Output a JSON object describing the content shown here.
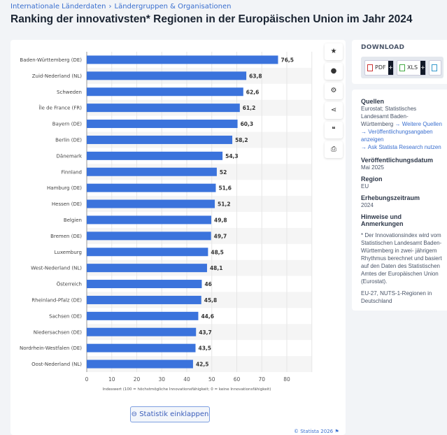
{
  "breadcrumb": [
    "Internationale Länderdaten",
    "›",
    "Ländergruppen & Organisationen"
  ],
  "title": "Ranking der innovativsten* Regionen in der Europäischen Union im Jahr 2024",
  "side_icons": [
    "star-icon",
    "bell-icon",
    "gear-icon",
    "share-icon",
    "quote-icon",
    "print-icon"
  ],
  "collapse_button": "Statistik einklappen",
  "copyright": "© Statista 2026",
  "download": {
    "title": "DOWNLOAD",
    "buttons": [
      "PDF",
      "XLS"
    ]
  },
  "info": {
    "sources_h": "Quellen",
    "sources": "Eurostat; Statistisches Landesamt Baden-",
    "sources2": "Württemberg",
    "link1": "→ Weitere Quellen",
    "link2": "→ Veröffentlichungsangaben anzeigen",
    "link3": "→ Ask Statista Research nutzen",
    "pub_h": "Veröffentlichungsdatum",
    "pub": "Mai 2025",
    "region_h": "Region",
    "region": "EU",
    "period_h": "Erhebungszeitraum",
    "period": "2024",
    "notes_h": "Hinweise und Anmerkungen",
    "notes": [
      "* Der Innovationsindex wird vom Statistischen",
      "Landesamt Baden-Württemberg in zwei-",
      "jährigem Rhythmus berechnet und basiert auf",
      "den Daten des Statistischen Amtes der",
      "Europäischen Union (Eurostat)."
    ],
    "notes2": "EU-27, NUTS-1-Regionen in Deutschland"
  },
  "chart_data": {
    "type": "bar",
    "orientation": "horizontal",
    "categories": [
      "Baden-Württemberg (DE)",
      "Zuid-Nederland (NL)",
      "Schweden",
      "Île de France (FR)",
      "Bayern (DE)",
      "Berlin (DE)",
      "Dänemark",
      "Finnland",
      "Hamburg (DE)",
      "Hessen (DE)",
      "Belgien",
      "Bremen (DE)",
      "Luxemburg",
      "West-Nederland (NL)",
      "Österreich",
      "Rheinland-Pfalz (DE)",
      "Sachsen (DE)",
      "Niedersachsen (DE)",
      "Nordrhein-Westfalen (DE)",
      "Oost-Nederland (NL)"
    ],
    "values": [
      76.5,
      63.8,
      62.6,
      61.2,
      60.3,
      58.2,
      54.3,
      52,
      51.6,
      51.2,
      49.8,
      49.7,
      48.5,
      48.1,
      46,
      45.8,
      44.6,
      43.7,
      43.5,
      42.5
    ],
    "value_labels": [
      "76,5",
      "63,8",
      "62,6",
      "61,2",
      "60,3",
      "58,2",
      "54,3",
      "52",
      "51,6",
      "51,2",
      "49,8",
      "49,7",
      "48,5",
      "48,1",
      "46",
      "45,8",
      "44,6",
      "43,7",
      "43,5",
      "42,5"
    ],
    "xlabel": "Indexwert (100 = höchstmögliche Innovationsfähigkeit; 0 = keine Innovationsfähigkeit)",
    "xlim": [
      0,
      90
    ],
    "xticks": [
      0,
      10,
      20,
      30,
      40,
      50,
      60,
      70,
      80
    ],
    "grid": true,
    "bar_color": "#3b73dc"
  }
}
